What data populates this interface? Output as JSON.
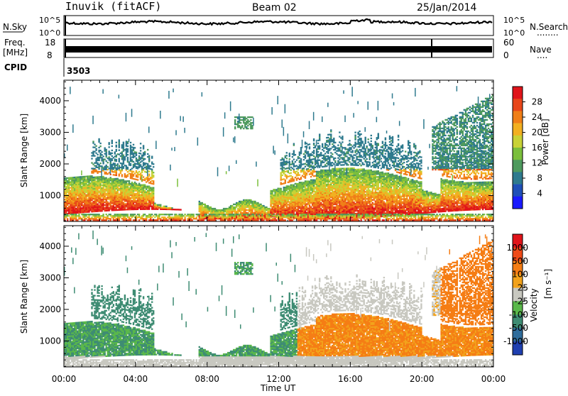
{
  "header": {
    "station": "Inuvik (fitACF)",
    "beam": "Beam 02",
    "date": "25/Jan/2014"
  },
  "strip_panels": {
    "nsky": {
      "label": "N.Sky",
      "left_ticks": [
        "10^5",
        "10^0"
      ],
      "right_ticks": [
        "10^5",
        "10^0"
      ],
      "right_label": "N.Search",
      "right_key": "........"
    },
    "freq": {
      "label_line1": "Freq.",
      "label_line2": "[MHz]",
      "left_ticks": [
        "18",
        "8"
      ],
      "right_ticks": [
        "60",
        "0"
      ],
      "right_label": "Nave",
      "right_key": "...."
    },
    "cpid": {
      "label": "CPID",
      "value": "3503"
    }
  },
  "chart_data": [
    {
      "type": "heatmap",
      "panel": "power",
      "ylabel": "Slant Range [km]",
      "ylim": [
        180,
        4650
      ],
      "yticks": [
        1000,
        2000,
        3000,
        4000
      ],
      "xlim_hours": [
        0,
        24
      ],
      "colorbar": {
        "label": "Power [dB]",
        "ticks": [
          "4",
          "8",
          "12",
          "16",
          "20",
          "24",
          "28"
        ],
        "colors": [
          "#1a1aff",
          "#1f4fb8",
          "#2e7a8e",
          "#4e9a5e",
          "#7bbf3c",
          "#c8d236",
          "#f2b021",
          "#f07f18",
          "#e8461a",
          "#e0141a"
        ]
      }
    },
    {
      "type": "heatmap",
      "panel": "velocity",
      "ylabel": "Slant Range [km]",
      "ylim": [
        180,
        4650
      ],
      "yticks": [
        1000,
        2000,
        3000,
        4000
      ],
      "xlim_hours": [
        0,
        24
      ],
      "colorbar": {
        "label": "Velocity",
        "unit": "[m s⁻¹]",
        "ticks": [
          "1000",
          "500",
          "100",
          "25",
          "-25",
          "-100",
          "-500",
          "-1000"
        ],
        "colors": [
          "#1f3fb0",
          "#2f6d9c",
          "#3e8c73",
          "#5ab84a",
          "#c8c8c0",
          "#f2a21b",
          "#f57d14",
          "#ef4a18",
          "#e1141a"
        ]
      }
    }
  ],
  "x_axis": {
    "ticks": [
      "00:00",
      "04:00",
      "08:00",
      "12:00",
      "16:00",
      "20:00",
      "00:00"
    ],
    "label": "Time UT"
  }
}
